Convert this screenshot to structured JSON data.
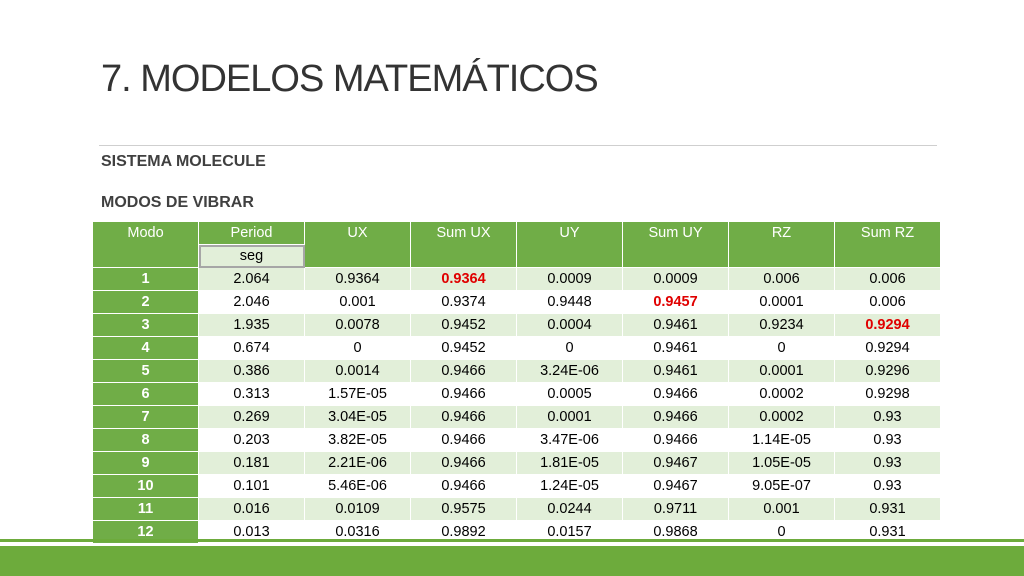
{
  "title": "7. MODELOS MATEMÁTICOS",
  "subtitle1": "SISTEMA MOLECULE",
  "subtitle2": "MODOS DE VIBRAR",
  "table": {
    "headers": [
      "Modo",
      "Period",
      "UX",
      "Sum UX",
      "UY",
      "Sum UY",
      "RZ",
      "Sum RZ"
    ],
    "period_unit": "seg",
    "rows": [
      [
        "1",
        "2.064",
        "0.9364",
        "0.9364",
        "0.0009",
        "0.0009",
        "0.006",
        "0.006"
      ],
      [
        "2",
        "2.046",
        "0.001",
        "0.9374",
        "0.9448",
        "0.9457",
        "0.0001",
        "0.006"
      ],
      [
        "3",
        "1.935",
        "0.0078",
        "0.9452",
        "0.0004",
        "0.9461",
        "0.9234",
        "0.9294"
      ],
      [
        "4",
        "0.674",
        "0",
        "0.9452",
        "0",
        "0.9461",
        "0",
        "0.9294"
      ],
      [
        "5",
        "0.386",
        "0.0014",
        "0.9466",
        "3.24E-06",
        "0.9461",
        "0.0001",
        "0.9296"
      ],
      [
        "6",
        "0.313",
        "1.57E-05",
        "0.9466",
        "0.0005",
        "0.9466",
        "0.0002",
        "0.9298"
      ],
      [
        "7",
        "0.269",
        "3.04E-05",
        "0.9466",
        "0.0001",
        "0.9466",
        "0.0002",
        "0.93"
      ],
      [
        "8",
        "0.203",
        "3.82E-05",
        "0.9466",
        "3.47E-06",
        "0.9466",
        "1.14E-05",
        "0.93"
      ],
      [
        "9",
        "0.181",
        "2.21E-06",
        "0.9466",
        "1.81E-05",
        "0.9467",
        "1.05E-05",
        "0.93"
      ],
      [
        "10",
        "0.101",
        "5.46E-06",
        "0.9466",
        "1.24E-05",
        "0.9467",
        "9.05E-07",
        "0.93"
      ],
      [
        "11",
        "0.016",
        "0.0109",
        "0.9575",
        "0.0244",
        "0.9711",
        "0.001",
        "0.931"
      ],
      [
        "12",
        "0.013",
        "0.0316",
        "0.9892",
        "0.0157",
        "0.9868",
        "0",
        "0.931"
      ]
    ],
    "highlight_color": "#e00000",
    "header_color": "#70ad47",
    "band_color": "#e2efd9"
  }
}
